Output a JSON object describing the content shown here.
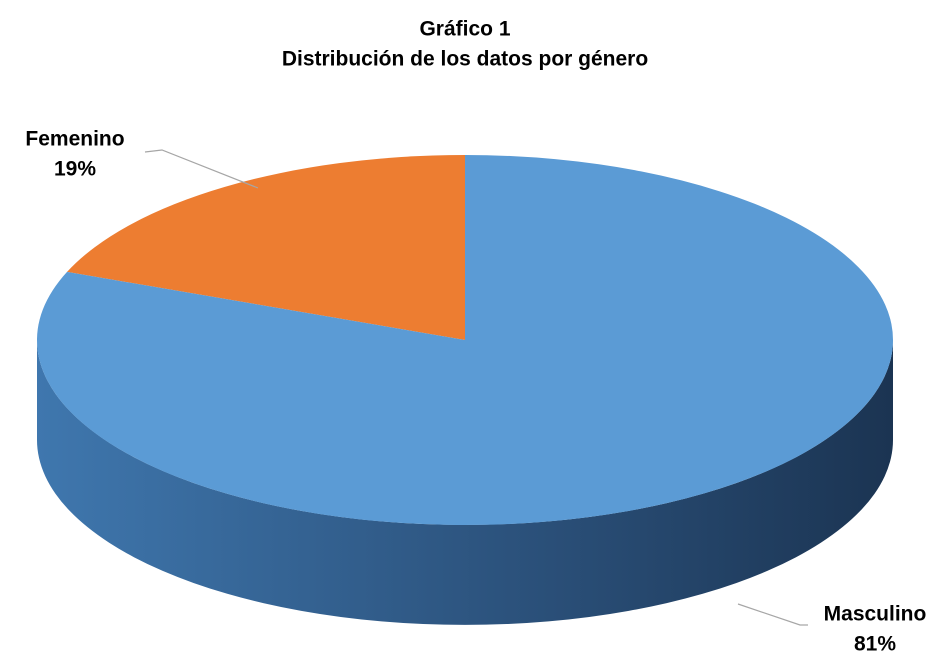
{
  "chart_data": {
    "type": "pie",
    "title": [
      "Gráfico 1",
      "Distribución de los datos por género"
    ],
    "categories": [
      "Femenino",
      "Masculino"
    ],
    "values": [
      19,
      81
    ],
    "value_labels": [
      "19%",
      "81%"
    ],
    "colors": [
      "#ed7d31",
      "#5b9bd5"
    ],
    "three_d": true
  }
}
